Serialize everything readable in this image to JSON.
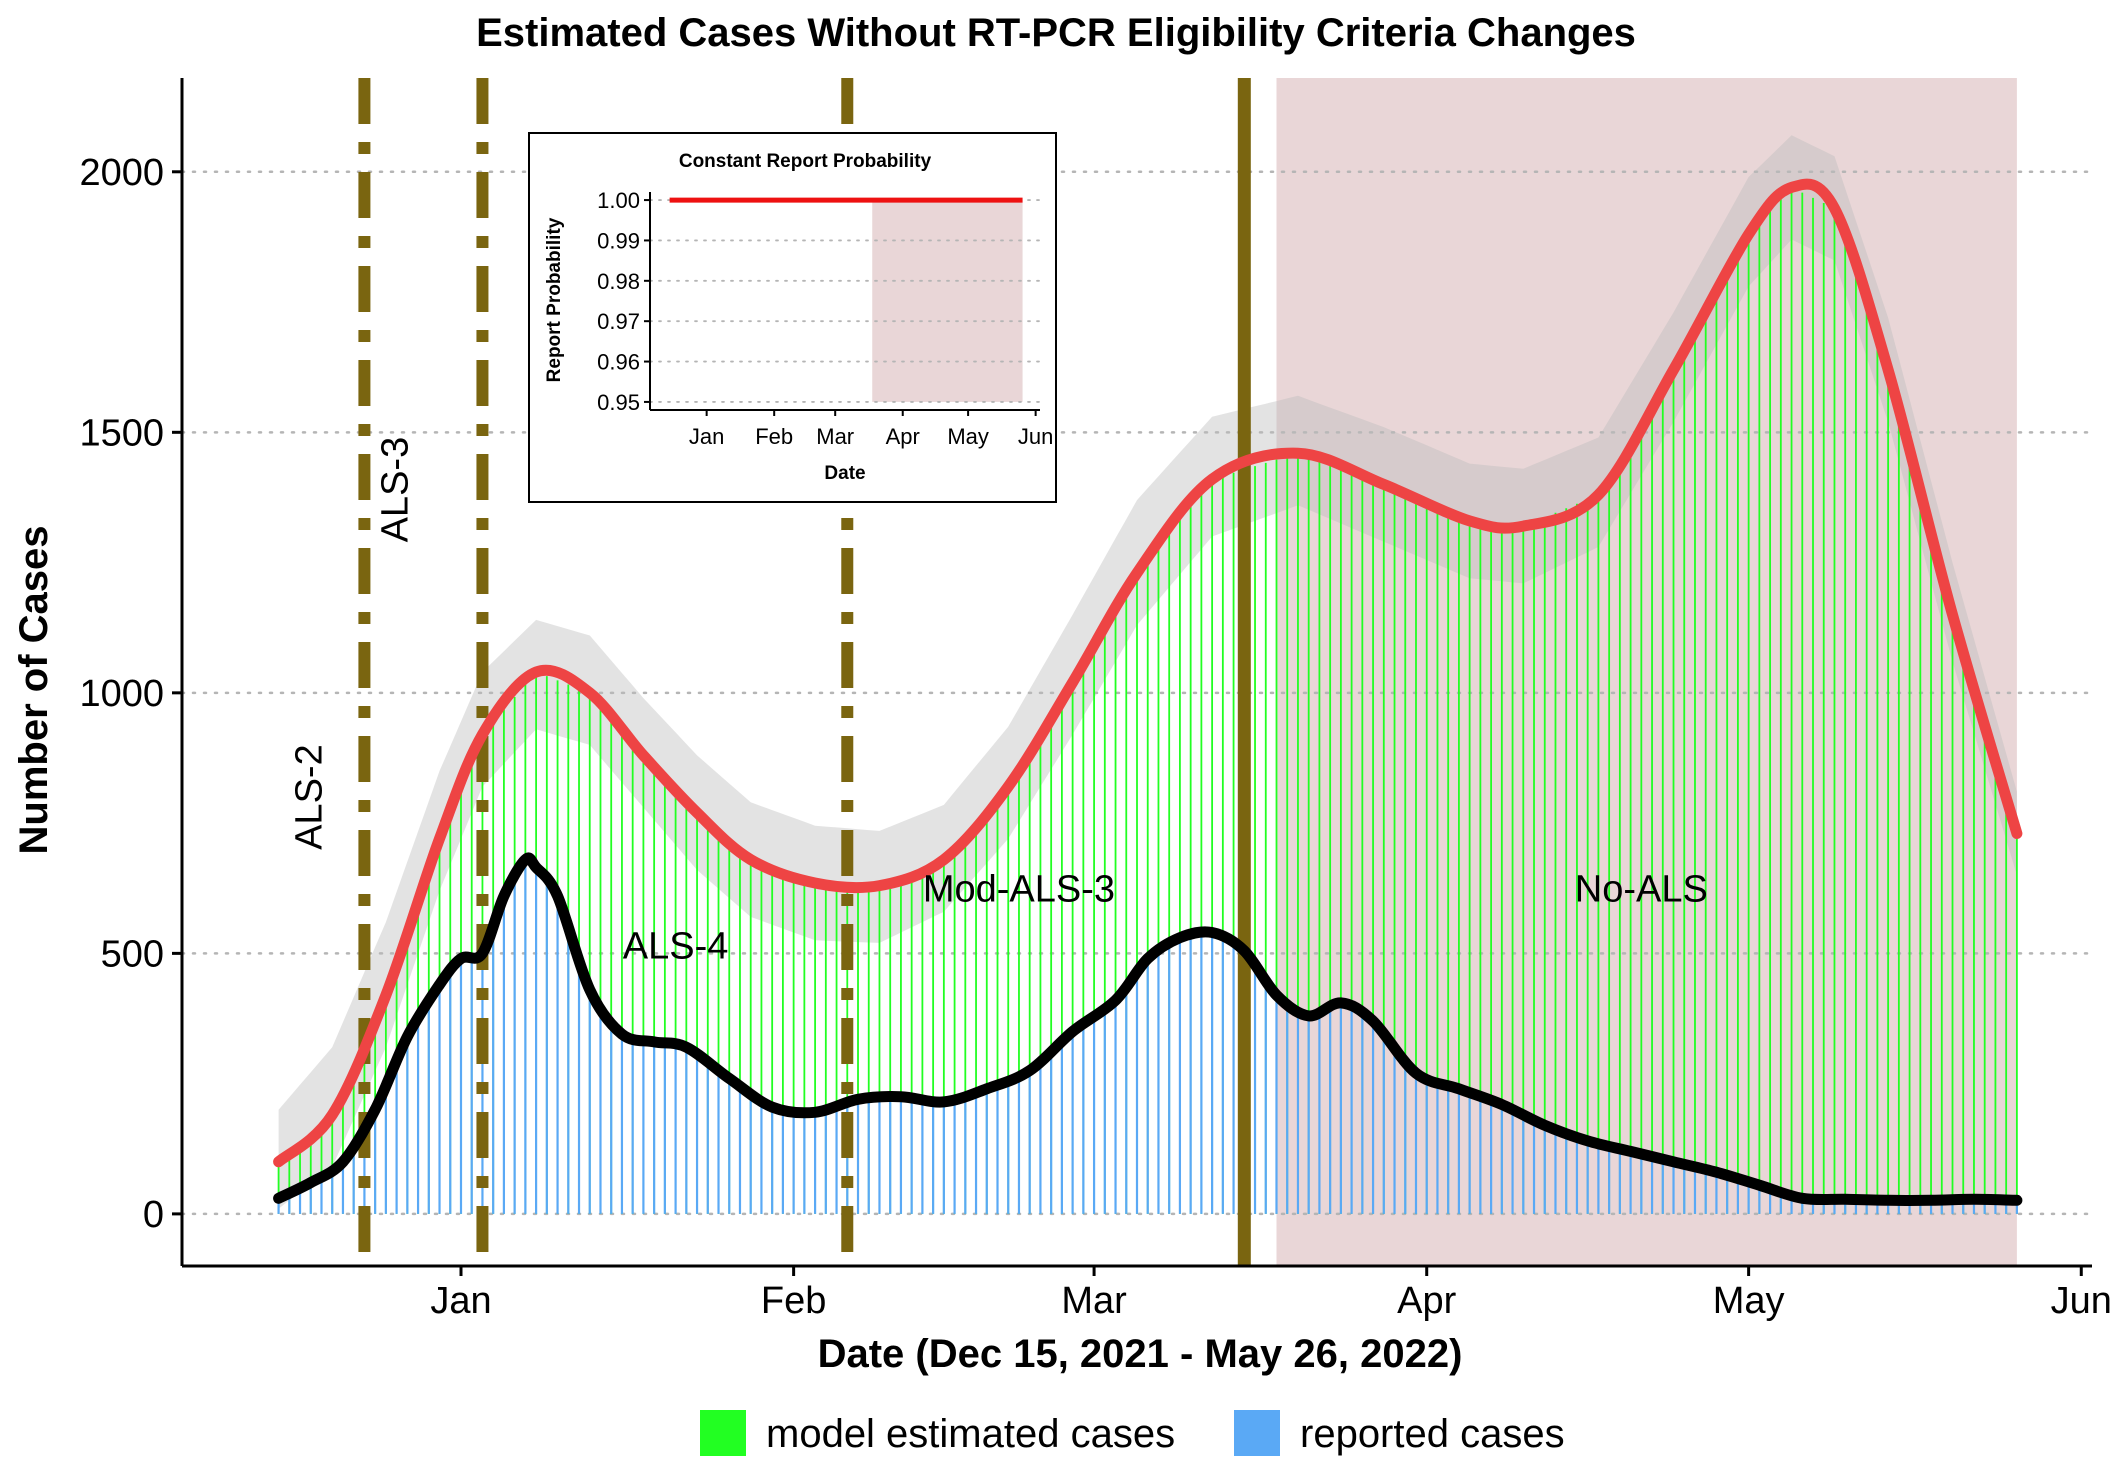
{
  "chart_data": {
    "type": "bar",
    "title": "Estimated Cases Without RT-PCR Eligibility Criteria Changes",
    "xlabel": "Date (Dec 15, 2021 - May 26, 2022)",
    "ylabel": "Number of Cases",
    "x_range": [
      "2021-12-06",
      "2022-06-02"
    ],
    "ylim": [
      -100,
      2180
    ],
    "y_ticks": [
      0,
      500,
      1000,
      1500,
      2000
    ],
    "x_ticks": [
      {
        "date": "2022-01-01",
        "label": "Jan"
      },
      {
        "date": "2022-02-01",
        "label": "Feb"
      },
      {
        "date": "2022-03-01",
        "label": "Mar"
      },
      {
        "date": "2022-04-01",
        "label": "Apr"
      },
      {
        "date": "2022-05-01",
        "label": "May"
      },
      {
        "date": "2022-06-01",
        "label": "Jun"
      }
    ],
    "grid": "horizontal dotted",
    "legend_position": "bottom",
    "series": [
      {
        "name": "model estimated cases",
        "color": "#22ff22",
        "estimate_curve_color": "#ee4444",
        "band_color": "#bdbdbd",
        "points": [
          {
            "x": "2021-12-15",
            "y": 100,
            "lo": 10,
            "hi": 200
          },
          {
            "x": "2021-12-20",
            "y": 190,
            "lo": 90,
            "hi": 320
          },
          {
            "x": "2021-12-25",
            "y": 420,
            "lo": 320,
            "hi": 560
          },
          {
            "x": "2021-12-30",
            "y": 720,
            "lo": 620,
            "hi": 850
          },
          {
            "x": "2022-01-03",
            "y": 920,
            "lo": 820,
            "hi": 1040
          },
          {
            "x": "2022-01-08",
            "y": 1040,
            "lo": 930,
            "hi": 1140
          },
          {
            "x": "2022-01-13",
            "y": 1000,
            "lo": 900,
            "hi": 1110
          },
          {
            "x": "2022-01-18",
            "y": 880,
            "lo": 780,
            "hi": 990
          },
          {
            "x": "2022-01-23",
            "y": 770,
            "lo": 660,
            "hi": 880
          },
          {
            "x": "2022-01-28",
            "y": 680,
            "lo": 570,
            "hi": 790
          },
          {
            "x": "2022-02-03",
            "y": 635,
            "lo": 525,
            "hi": 745
          },
          {
            "x": "2022-02-09",
            "y": 630,
            "lo": 520,
            "hi": 735
          },
          {
            "x": "2022-02-15",
            "y": 680,
            "lo": 580,
            "hi": 785
          },
          {
            "x": "2022-02-21",
            "y": 820,
            "lo": 720,
            "hi": 935
          },
          {
            "x": "2022-02-27",
            "y": 1020,
            "lo": 920,
            "hi": 1150
          },
          {
            "x": "2022-03-05",
            "y": 1230,
            "lo": 1130,
            "hi": 1370
          },
          {
            "x": "2022-03-12",
            "y": 1410,
            "lo": 1300,
            "hi": 1530
          },
          {
            "x": "2022-03-20",
            "y": 1460,
            "lo": 1360,
            "hi": 1570
          },
          {
            "x": "2022-03-28",
            "y": 1400,
            "lo": 1290,
            "hi": 1510
          },
          {
            "x": "2022-04-05",
            "y": 1330,
            "lo": 1220,
            "hi": 1440
          },
          {
            "x": "2022-04-10",
            "y": 1320,
            "lo": 1210,
            "hi": 1430
          },
          {
            "x": "2022-04-17",
            "y": 1380,
            "lo": 1280,
            "hi": 1490
          },
          {
            "x": "2022-04-24",
            "y": 1620,
            "lo": 1520,
            "hi": 1730
          },
          {
            "x": "2022-05-01",
            "y": 1880,
            "lo": 1780,
            "hi": 1990
          },
          {
            "x": "2022-05-05",
            "y": 1970,
            "lo": 1870,
            "hi": 2070
          },
          {
            "x": "2022-05-09",
            "y": 1930,
            "lo": 1830,
            "hi": 2030
          },
          {
            "x": "2022-05-14",
            "y": 1620,
            "lo": 1520,
            "hi": 1720
          },
          {
            "x": "2022-05-20",
            "y": 1150,
            "lo": 1060,
            "hi": 1250
          },
          {
            "x": "2022-05-26",
            "y": 730,
            "lo": 650,
            "hi": 810
          }
        ]
      },
      {
        "name": "reported cases",
        "color": "#5aa9f5",
        "line_color": "#000000",
        "points": [
          {
            "x": "2021-12-15",
            "y": 30
          },
          {
            "x": "2021-12-18",
            "y": 60
          },
          {
            "x": "2021-12-21",
            "y": 100
          },
          {
            "x": "2021-12-24",
            "y": 200
          },
          {
            "x": "2021-12-27",
            "y": 340
          },
          {
            "x": "2021-12-30",
            "y": 440
          },
          {
            "x": "2022-01-01",
            "y": 490
          },
          {
            "x": "2022-01-03",
            "y": 500
          },
          {
            "x": "2022-01-05",
            "y": 610
          },
          {
            "x": "2022-01-07",
            "y": 680
          },
          {
            "x": "2022-01-08",
            "y": 665
          },
          {
            "x": "2022-01-10",
            "y": 610
          },
          {
            "x": "2022-01-13",
            "y": 430
          },
          {
            "x": "2022-01-16",
            "y": 345
          },
          {
            "x": "2022-01-19",
            "y": 330
          },
          {
            "x": "2022-01-22",
            "y": 320
          },
          {
            "x": "2022-01-26",
            "y": 260
          },
          {
            "x": "2022-01-30",
            "y": 205
          },
          {
            "x": "2022-02-03",
            "y": 195
          },
          {
            "x": "2022-02-07",
            "y": 220
          },
          {
            "x": "2022-02-11",
            "y": 225
          },
          {
            "x": "2022-02-15",
            "y": 215
          },
          {
            "x": "2022-02-19",
            "y": 240
          },
          {
            "x": "2022-02-23",
            "y": 275
          },
          {
            "x": "2022-02-27",
            "y": 350
          },
          {
            "x": "2022-03-03",
            "y": 410
          },
          {
            "x": "2022-03-06",
            "y": 490
          },
          {
            "x": "2022-03-09",
            "y": 530
          },
          {
            "x": "2022-03-12",
            "y": 540
          },
          {
            "x": "2022-03-15",
            "y": 505
          },
          {
            "x": "2022-03-18",
            "y": 420
          },
          {
            "x": "2022-03-21",
            "y": 380
          },
          {
            "x": "2022-03-24",
            "y": 405
          },
          {
            "x": "2022-03-27",
            "y": 370
          },
          {
            "x": "2022-03-31",
            "y": 270
          },
          {
            "x": "2022-04-04",
            "y": 240
          },
          {
            "x": "2022-04-08",
            "y": 210
          },
          {
            "x": "2022-04-12",
            "y": 170
          },
          {
            "x": "2022-04-16",
            "y": 140
          },
          {
            "x": "2022-04-20",
            "y": 120
          },
          {
            "x": "2022-04-24",
            "y": 100
          },
          {
            "x": "2022-04-28",
            "y": 80
          },
          {
            "x": "2022-05-02",
            "y": 55
          },
          {
            "x": "2022-05-06",
            "y": 30
          },
          {
            "x": "2022-05-10",
            "y": 28
          },
          {
            "x": "2022-05-14",
            "y": 26
          },
          {
            "x": "2022-05-18",
            "y": 26
          },
          {
            "x": "2022-05-22",
            "y": 28
          },
          {
            "x": "2022-05-26",
            "y": 26
          }
        ]
      }
    ],
    "shaded_region": {
      "start": "2022-03-18",
      "end": "2022-05-26",
      "color": "#e9d6d7"
    },
    "vlines": [
      {
        "date": "2021-12-23",
        "style": "dashdot",
        "color": "#7a6510"
      },
      {
        "date": "2022-01-03",
        "style": "dashdot",
        "color": "#7a6510"
      },
      {
        "date": "2022-02-06",
        "style": "dashdot",
        "color": "#7a6510"
      },
      {
        "date": "2022-03-15",
        "style": "solid",
        "color": "#7a6510"
      }
    ],
    "annotations": [
      {
        "text": "ALS-2",
        "x": "2021-12-19",
        "y": 800,
        "rotate": true
      },
      {
        "text": "ALS-3",
        "x": "2021-12-27",
        "y": 1390,
        "rotate": true
      },
      {
        "text": "ALS-4",
        "x": "2022-01-21",
        "y": 490,
        "rotate": false
      },
      {
        "text": "Mod-ALS-3",
        "x": "2022-02-22",
        "y": 600,
        "rotate": false
      },
      {
        "text": "No-ALS",
        "x": "2022-04-21",
        "y": 600,
        "rotate": false
      }
    ],
    "inset": {
      "type": "line",
      "title": "Constant Report Probability",
      "xlabel": "Date",
      "ylabel": "Report Probability",
      "ylim": [
        0.948,
        1.002
      ],
      "y_ticks": [
        0.95,
        0.96,
        0.97,
        0.98,
        0.99,
        1.0
      ],
      "y_tick_labels": [
        "0.95",
        "0.96",
        "0.97",
        "0.98",
        "0.99",
        "1.00"
      ],
      "x_range": [
        "2021-12-06",
        "2022-06-03"
      ],
      "x_ticks": [
        {
          "date": "2022-01-01",
          "label": "Jan"
        },
        {
          "date": "2022-02-01",
          "label": "Feb"
        },
        {
          "date": "2022-03-01",
          "label": "Mar"
        },
        {
          "date": "2022-04-01",
          "label": "Apr"
        },
        {
          "date": "2022-05-01",
          "label": "May"
        },
        {
          "date": "2022-06-01",
          "label": "Jun"
        }
      ],
      "line": {
        "x_start": "2021-12-15",
        "x_end": "2022-05-26",
        "y": 1.0,
        "color": "#ee1111"
      },
      "shaded_region": {
        "start": "2022-03-18",
        "end": "2022-05-26",
        "color": "#e9d6d7"
      }
    }
  }
}
